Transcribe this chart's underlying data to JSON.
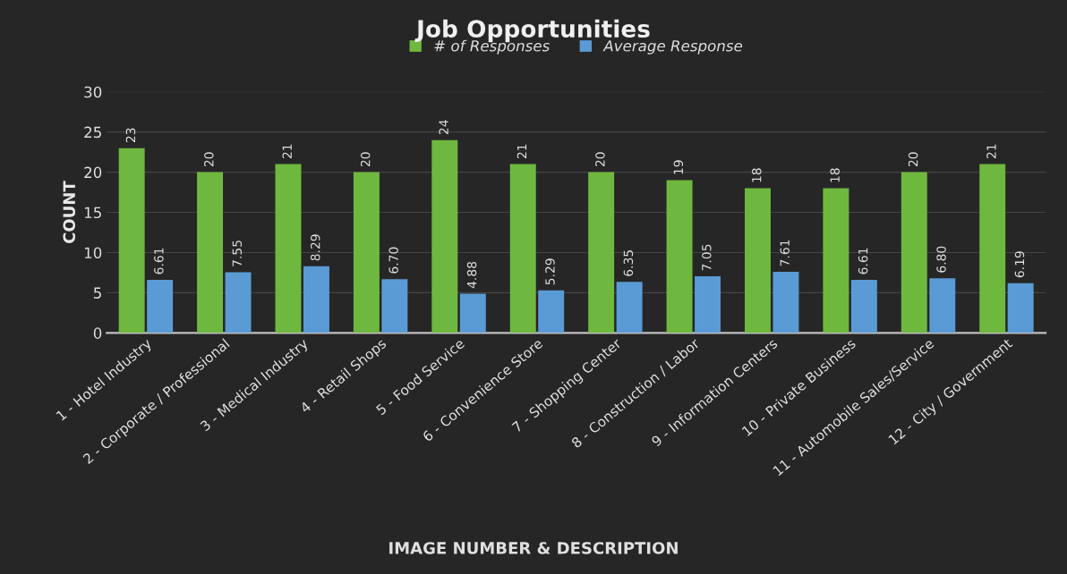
{
  "chart_data": {
    "type": "bar",
    "title": "Job Opportunities",
    "xlabel": "IMAGE NUMBER & DESCRIPTION",
    "ylabel": "COUNT",
    "categories": [
      "1 - Hotel Industry",
      "2 - Corporate / Professional",
      "3 - Medical Industry",
      "4 - Retail Shops",
      "5 - Food Service",
      "6 - Convenience Store",
      "7 - Shopping Center",
      "8 - Construction / Labor",
      "9 - Information Centers",
      "10 - Private Business",
      "11 - Automobile Sales/Service",
      "12 - City / Government"
    ],
    "series": [
      {
        "name": "# of Responses",
        "color": "#6fb83f",
        "values": [
          23,
          20,
          21,
          20,
          24,
          21,
          20,
          19,
          18,
          18,
          20,
          21
        ],
        "value_labels": [
          "23",
          "20",
          "21",
          "20",
          "24",
          "21",
          "20",
          "19",
          "18",
          "18",
          "20",
          "21"
        ]
      },
      {
        "name": "Average Response",
        "color": "#5b9bd5",
        "values": [
          6.61,
          7.55,
          8.29,
          6.7,
          4.88,
          5.29,
          6.35,
          7.05,
          7.61,
          6.61,
          6.8,
          6.19
        ],
        "value_labels": [
          "6.61",
          "7.55",
          "8.29",
          "6.70",
          "4.88",
          "5.29",
          "6.35",
          "7.05",
          "7.61",
          "6.61",
          "6.80",
          "6.19"
        ]
      }
    ],
    "ylim": [
      0,
      30
    ],
    "yticks": [
      0,
      5,
      10,
      15,
      20,
      25,
      30
    ],
    "grid": "y",
    "legend": "top"
  }
}
